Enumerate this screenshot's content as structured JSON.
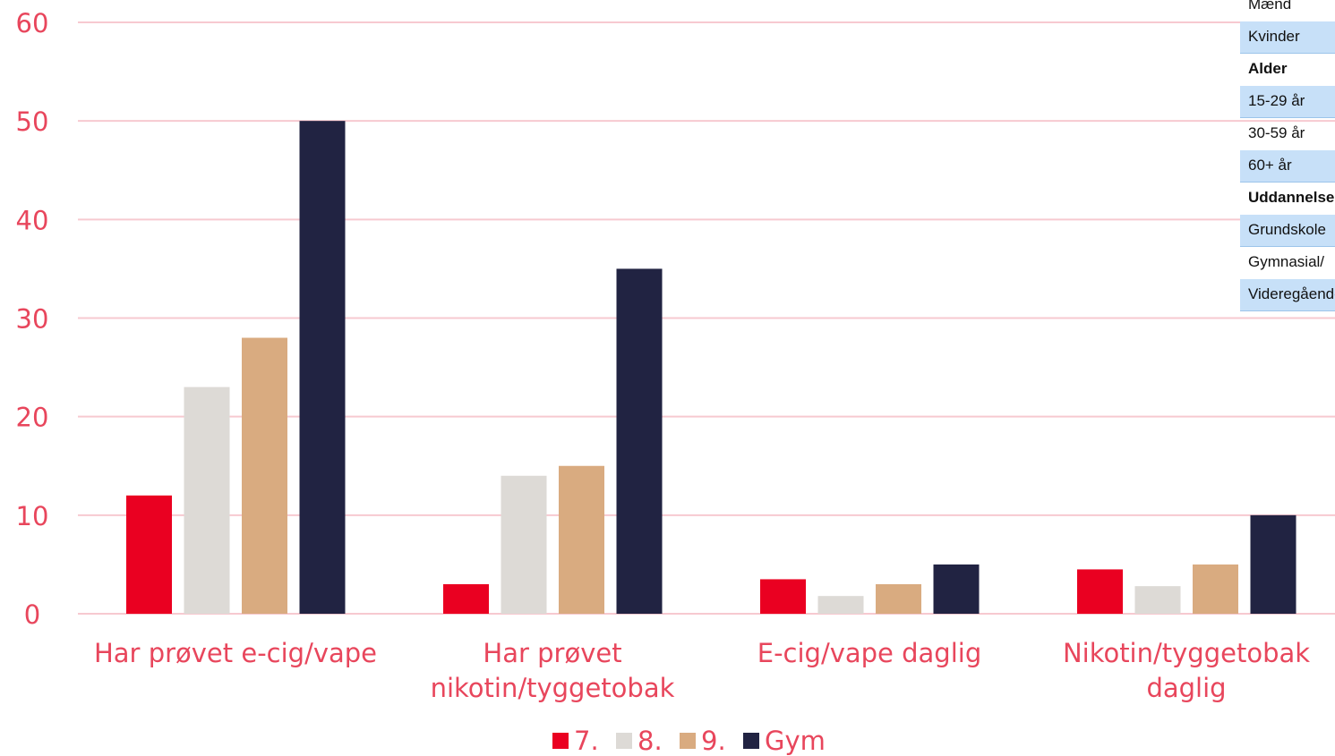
{
  "chart_data": {
    "type": "bar",
    "categories": [
      [
        "Har prøvet e-cig/vape"
      ],
      [
        "Har prøvet",
        "nikotin/tyggetobak"
      ],
      [
        "E-cig/vape daglig"
      ],
      [
        "Nikotin/tyggetobak",
        "daglig"
      ]
    ],
    "series": [
      {
        "name": "7.",
        "color": "#ea0021",
        "values": [
          12,
          3,
          3.5,
          4.5
        ]
      },
      {
        "name": "8.",
        "color": "#dddad6",
        "values": [
          23,
          14,
          1.8,
          2.8
        ]
      },
      {
        "name": "9.",
        "color": "#d9ab80",
        "values": [
          28,
          15,
          3,
          5
        ]
      },
      {
        "name": "Gym",
        "color": "#212342",
        "values": [
          50,
          35,
          5,
          10
        ]
      }
    ],
    "yticks": [
      "0",
      "10",
      "20",
      "30",
      "40",
      "50",
      "60"
    ],
    "ylim": [
      0,
      60
    ],
    "grid": true,
    "legend_position": "bottom-center",
    "text_color": "#e8465c",
    "grid_color": "#f7c9d0"
  },
  "overlay_table": {
    "rows": [
      {
        "label": "Mænd",
        "style": "plain"
      },
      {
        "label": "Kvinder",
        "style": "shaded"
      },
      {
        "label": "Alder",
        "style": "bold"
      },
      {
        "label": "15-29 år",
        "style": "shaded"
      },
      {
        "label": "30-59 år",
        "style": "plain"
      },
      {
        "label": "60+ år",
        "style": "shaded"
      },
      {
        "label": "Uddannelse",
        "style": "bold"
      },
      {
        "label": "Grundskole",
        "style": "shaded"
      },
      {
        "label": "Gymnasial/",
        "style": "plain"
      },
      {
        "label": "Videregående",
        "style": "shaded"
      }
    ]
  }
}
